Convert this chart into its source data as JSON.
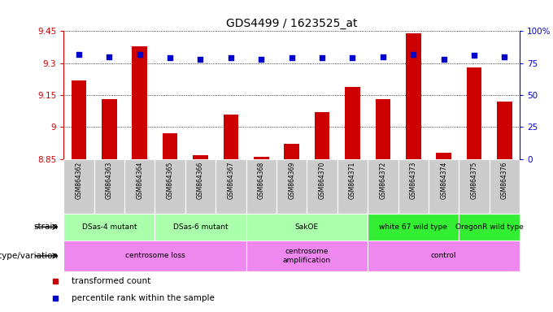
{
  "title": "GDS4499 / 1623525_at",
  "samples": [
    "GSM864362",
    "GSM864363",
    "GSM864364",
    "GSM864365",
    "GSM864366",
    "GSM864367",
    "GSM864368",
    "GSM864369",
    "GSM864370",
    "GSM864371",
    "GSM864372",
    "GSM864373",
    "GSM864374",
    "GSM864375",
    "GSM864376"
  ],
  "transformed_count": [
    9.22,
    9.13,
    9.38,
    8.97,
    8.87,
    9.06,
    8.86,
    8.92,
    9.07,
    9.19,
    9.13,
    9.44,
    8.88,
    9.28,
    9.12
  ],
  "percentile": [
    82,
    80,
    82,
    79,
    78,
    79,
    78,
    79,
    79,
    79,
    80,
    82,
    78,
    81,
    80
  ],
  "ylim": [
    8.85,
    9.45
  ],
  "yticks": [
    8.85,
    9.0,
    9.15,
    9.3,
    9.45
  ],
  "ytick_labels": [
    "8.85",
    "9",
    "9.15",
    "9.3",
    "9.45"
  ],
  "right_yticks": [
    0,
    25,
    50,
    75,
    100
  ],
  "right_ytick_labels": [
    "0",
    "25",
    "50",
    "75",
    "100%"
  ],
  "bar_color": "#cc0000",
  "dot_color": "#0000cc",
  "strain_groups": [
    {
      "label": "DSas-4 mutant",
      "start": 0,
      "end": 2,
      "color": "#aaffaa"
    },
    {
      "label": "DSas-6 mutant",
      "start": 3,
      "end": 5,
      "color": "#aaffaa"
    },
    {
      "label": "SakOE",
      "start": 6,
      "end": 9,
      "color": "#aaffaa"
    },
    {
      "label": "white 67 wild type",
      "start": 10,
      "end": 12,
      "color": "#33ee33"
    },
    {
      "label": "OregonR wild type",
      "start": 13,
      "end": 14,
      "color": "#33ee33"
    }
  ],
  "genotype_groups": [
    {
      "label": "centrosome loss",
      "start": 0,
      "end": 5
    },
    {
      "label": "centrosome\namplification",
      "start": 6,
      "end": 9
    },
    {
      "label": "control",
      "start": 10,
      "end": 14
    }
  ],
  "geno_color": "#ee88ee",
  "sample_bg": "#cccccc",
  "strain_label": "strain",
  "genotype_label": "genotype/variation",
  "legend_items": [
    {
      "color": "#cc0000",
      "label": "transformed count"
    },
    {
      "color": "#0000cc",
      "label": "percentile rank within the sample"
    }
  ],
  "grid_color": "#555555",
  "bg_color": "#ffffff"
}
